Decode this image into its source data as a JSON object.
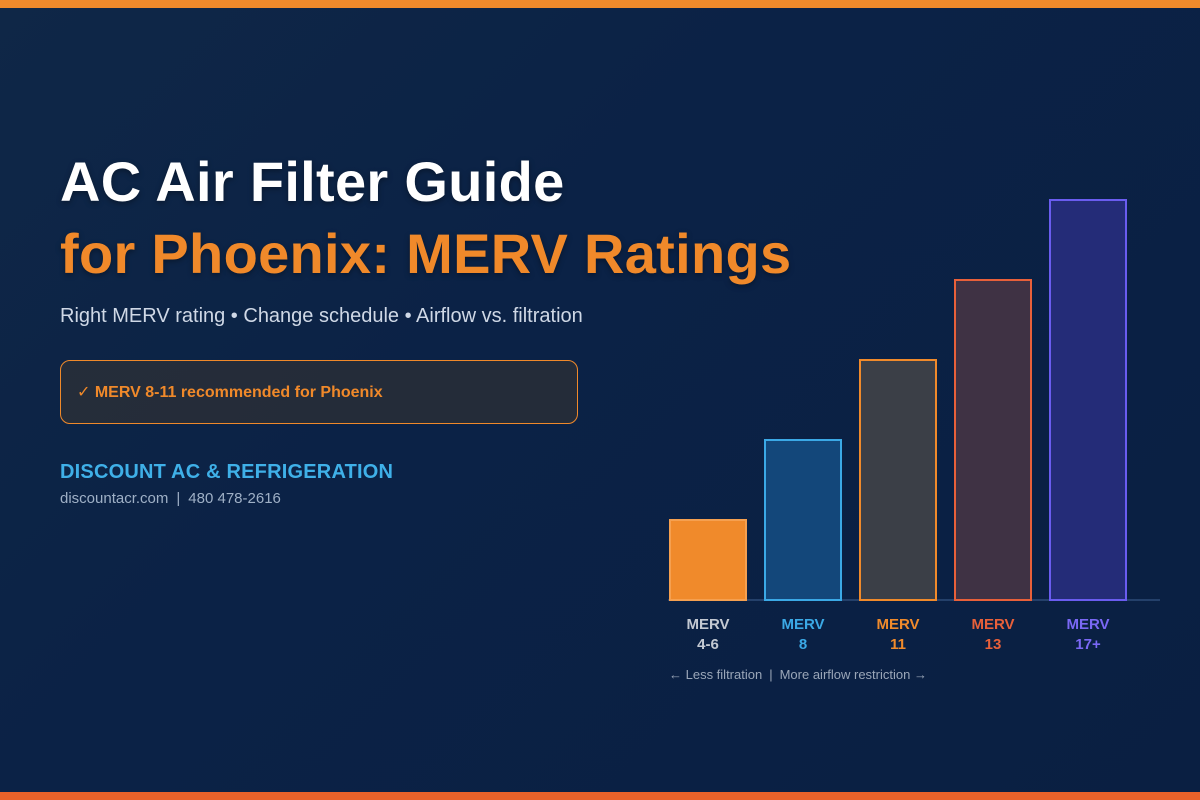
{
  "title_line1": "AC Air Filter Guide",
  "title_line2": "for Phoenix: MERV Ratings",
  "subtitle": "Right MERV rating • Change schedule • Airflow vs. filtration",
  "recommendation": "✓ MERV 8-11 recommended for Phoenix",
  "company": "DISCOUNT AC & REFRIGERATION",
  "website": "discountacr.com",
  "phone": "480 478-2616",
  "contact_separator": "|",
  "caption_left": "← Less filtration",
  "caption_separator": "|",
  "caption_right": "More airflow restriction →",
  "colors": {
    "accent_orange": "#f0892a",
    "company_blue": "#3fb0e8",
    "top_bar": "#f08a2b",
    "bottom_bar": "#e8622a"
  },
  "chart_data": {
    "type": "bar",
    "categories": [
      [
        "MERV",
        "4-6"
      ],
      [
        "MERV",
        "8"
      ],
      [
        "MERV",
        "11"
      ],
      [
        "MERV",
        "13"
      ],
      [
        "MERV",
        "17+"
      ]
    ],
    "values": [
      1,
      2,
      3,
      4,
      5
    ],
    "ylim": [
      0,
      5.7
    ],
    "grid": false,
    "legend": "none",
    "bar_colors": [
      {
        "fill": "#f08a2b",
        "stroke": "#f5a050",
        "label": "#c3c9d2"
      },
      {
        "fill": "#13477a",
        "stroke": "#3ba9e6",
        "label": "#3ba9e6"
      },
      {
        "fill": "#3b3f47",
        "stroke": "#f08a2b",
        "label": "#f08a2b"
      },
      {
        "fill": "#3f3244",
        "stroke": "#e8603a",
        "label": "#e8603a"
      },
      {
        "fill": "#242c78",
        "stroke": "#6a5cf0",
        "label": "#7a68f5"
      }
    ]
  }
}
